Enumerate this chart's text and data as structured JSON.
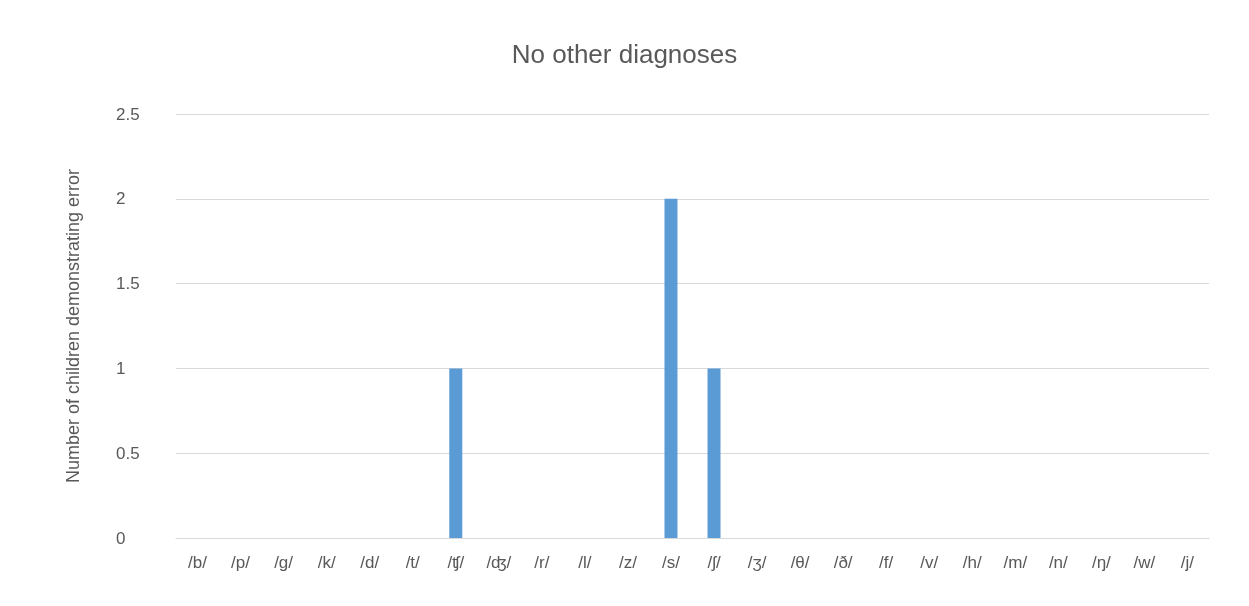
{
  "chart_data": {
    "type": "bar",
    "title": "No other diagnoses",
    "ylabel": "Number of children demonstrating error",
    "categories": [
      "/b/",
      "/p/",
      "/g/",
      "/k/",
      "/d/",
      "/t/",
      "/ʧ/",
      "/ʤ/",
      "/r/",
      "/l/",
      "/z/",
      "/s/",
      "/ʃ/",
      "/ʒ/",
      "/θ/",
      "/ð/",
      "/f/",
      "/v/",
      "/h/",
      "/m/",
      "/n/",
      "/ŋ/",
      "/w/",
      "/j/"
    ],
    "values": [
      0,
      0,
      0,
      0,
      0,
      0,
      1,
      0,
      0,
      0,
      0,
      2,
      1,
      0,
      0,
      0,
      0,
      0,
      0,
      0,
      0,
      0,
      0,
      0
    ],
    "color": "#5b9bd5",
    "ylim": [
      0,
      2.5
    ],
    "yticks": [
      0,
      0.5,
      1,
      1.5,
      2,
      2.5
    ],
    "grid": "y"
  }
}
